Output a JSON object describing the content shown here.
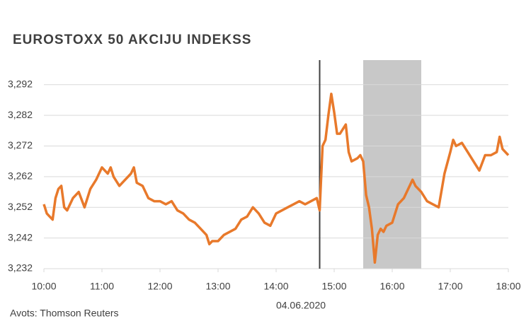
{
  "chart_data": {
    "type": "line",
    "title": "EUROSTOXX  50  AKCIJU  INDEKSS",
    "x_label": "04.06.2020",
    "source": "Avots: Thomson Reuters",
    "xlim": [
      10,
      18
    ],
    "xticks": [
      {
        "value": 10,
        "label": "10:00"
      },
      {
        "value": 11,
        "label": "11:00"
      },
      {
        "value": 12,
        "label": "12:00"
      },
      {
        "value": 13,
        "label": "13:00"
      },
      {
        "value": 14,
        "label": "14:00"
      },
      {
        "value": 15,
        "label": "15:00"
      },
      {
        "value": 16,
        "label": "16:00"
      },
      {
        "value": 17,
        "label": "17:00"
      },
      {
        "value": 18,
        "label": "18:00"
      }
    ],
    "ylim": [
      3232,
      3300
    ],
    "yticks": [
      {
        "value": 3232,
        "label": "3,232"
      },
      {
        "value": 3242,
        "label": "3,242"
      },
      {
        "value": 3252,
        "label": "3,252"
      },
      {
        "value": 3262,
        "label": "3,262"
      },
      {
        "value": 3272,
        "label": "3,272"
      },
      {
        "value": 3282,
        "label": "3,282"
      },
      {
        "value": 3292,
        "label": "3,292"
      }
    ],
    "grid": true,
    "vline": 14.75,
    "vline_color": "#404040",
    "shade": [
      15.5,
      16.5
    ],
    "shade_color": "#c8c8c8",
    "series": [
      {
        "color": "#e8792b",
        "x": [
          10,
          10.05,
          10.1,
          10.15,
          10.2,
          10.25,
          10.3,
          10.35,
          10.4,
          10.5,
          10.6,
          10.7,
          10.8,
          10.9,
          11,
          11.05,
          11.1,
          11.15,
          11.2,
          11.3,
          11.4,
          11.5,
          11.55,
          11.6,
          11.7,
          11.8,
          11.9,
          12,
          12.1,
          12.2,
          12.3,
          12.4,
          12.5,
          12.6,
          12.7,
          12.8,
          12.85,
          12.9,
          13,
          13.1,
          13.2,
          13.3,
          13.4,
          13.5,
          13.6,
          13.7,
          13.8,
          13.9,
          14,
          14.1,
          14.2,
          14.3,
          14.4,
          14.5,
          14.6,
          14.7,
          14.75,
          14.8,
          14.85,
          14.9,
          14.95,
          15,
          15.05,
          15.1,
          15.2,
          15.25,
          15.3,
          15.4,
          15.45,
          15.5,
          15.55,
          15.6,
          15.65,
          15.7,
          15.75,
          15.8,
          15.85,
          15.9,
          16,
          16.1,
          16.15,
          16.2,
          16.3,
          16.35,
          16.4,
          16.5,
          16.6,
          16.7,
          16.8,
          16.9,
          17,
          17.05,
          17.1,
          17.2,
          17.3,
          17.4,
          17.5,
          17.6,
          17.7,
          17.8,
          17.85,
          17.9,
          18
        ],
        "values": [
          3253,
          3250,
          3249,
          3248,
          3255,
          3258,
          3259,
          3252,
          3251,
          3255,
          3257,
          3252,
          3258,
          3261,
          3265,
          3264,
          3263,
          3265,
          3262,
          3259,
          3261,
          3263,
          3265,
          3260,
          3259,
          3255,
          3254,
          3254,
          3253,
          3254,
          3251,
          3250,
          3248,
          3247,
          3245,
          3243,
          3240,
          3241,
          3241,
          3243,
          3244,
          3245,
          3248,
          3249,
          3252,
          3250,
          3247,
          3246,
          3250,
          3251,
          3252,
          3253,
          3254,
          3253,
          3254,
          3255,
          3251,
          3272,
          3274,
          3282,
          3289,
          3283,
          3276,
          3276,
          3279,
          3270,
          3267,
          3268,
          3269,
          3267,
          3256,
          3252,
          3245,
          3234,
          3243,
          3245,
          3244,
          3246,
          3247,
          3253,
          3254,
          3255,
          3259,
          3261,
          3259,
          3257,
          3254,
          3253,
          3252,
          3263,
          3270,
          3274,
          3272,
          3273,
          3270,
          3267,
          3264,
          3269,
          3269,
          3270,
          3275,
          3271,
          3269
        ]
      }
    ]
  }
}
